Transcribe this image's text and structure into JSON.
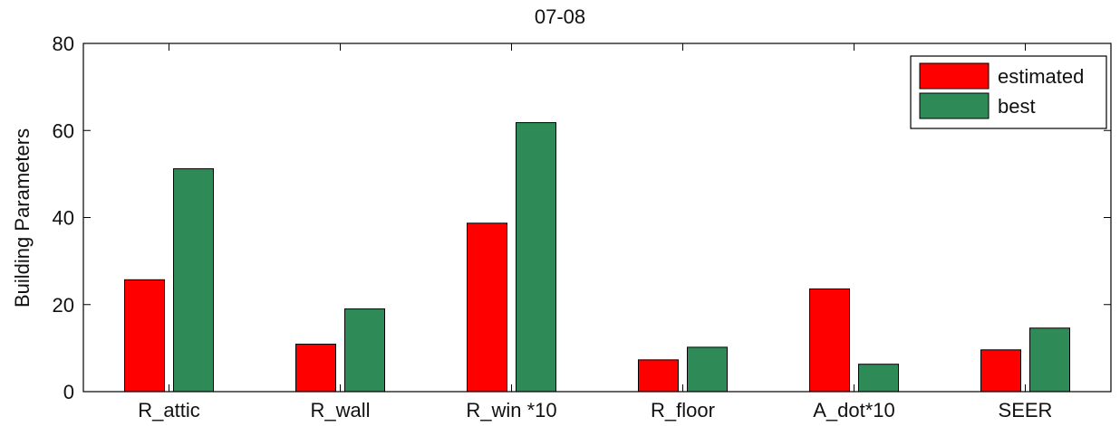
{
  "chart_data": {
    "type": "bar",
    "title": "07-08",
    "xlabel": "",
    "ylabel": "Building Parameters",
    "ylim": [
      0,
      80
    ],
    "yticks": [
      0,
      20,
      40,
      60,
      80
    ],
    "categories": [
      "R_attic",
      "R_wall",
      "R_win *10",
      "R_floor",
      "A_dot*10",
      "SEER"
    ],
    "series": [
      {
        "name": "estimated",
        "color": "#ff0000",
        "values": [
          25.7,
          10.9,
          38.7,
          7.3,
          23.6,
          9.6
        ]
      },
      {
        "name": "best",
        "color": "#2e8b57",
        "values": [
          51.2,
          19.0,
          61.8,
          10.2,
          6.3,
          14.6
        ]
      }
    ],
    "legend_position": "top-right",
    "grid": false
  }
}
